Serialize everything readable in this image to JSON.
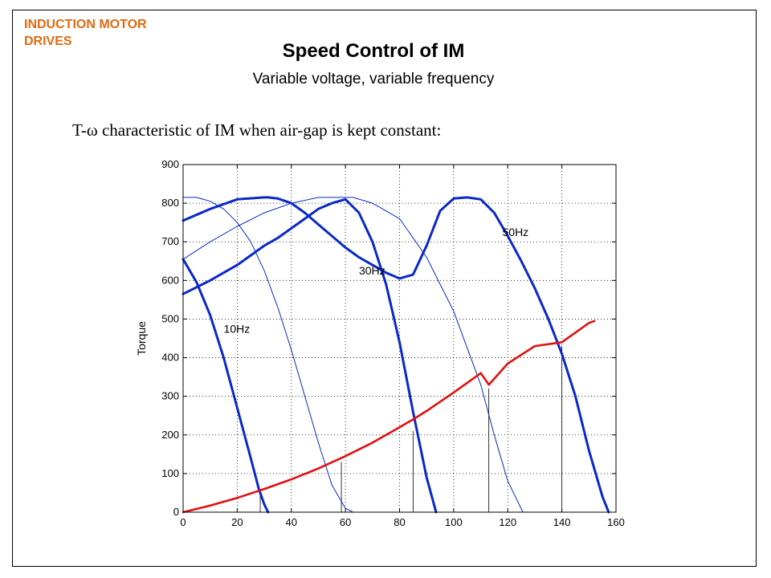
{
  "slide": {
    "section_label_line1": "INDUCTION MOTOR",
    "section_label_line2": "DRIVES",
    "title": "Speed Control of IM",
    "subtitle": "Variable voltage, variable frequency",
    "caption": "T-ω characteristic of IM when air-gap is kept constant:"
  },
  "chart_data": {
    "type": "line",
    "title": "",
    "xlabel": "",
    "ylabel": "Torque",
    "xlim": [
      0,
      160
    ],
    "ylim": [
      0,
      900
    ],
    "xticks": [
      0,
      20,
      40,
      60,
      80,
      100,
      120,
      140,
      160
    ],
    "yticks": [
      0,
      100,
      200,
      300,
      400,
      500,
      600,
      700,
      800,
      900
    ],
    "grid": "dotted",
    "curve_labels": [
      {
        "text": "10Hz",
        "x": 15,
        "y": 465
      },
      {
        "text": "30Hz",
        "x": 65,
        "y": 615
      },
      {
        "text": "50Hz",
        "x": 118,
        "y": 715
      }
    ],
    "series": [
      {
        "style": "thick-blue",
        "x": [
          0,
          5,
          10,
          15,
          20,
          25,
          28,
          30,
          31.4
        ],
        "y": [
          655,
          595,
          510,
          400,
          270,
          140,
          60,
          20,
          0
        ]
      },
      {
        "style": "thick-blue",
        "x": [
          0,
          10,
          20,
          25,
          30,
          35,
          40,
          45,
          50,
          55,
          60,
          65,
          70,
          75,
          80,
          85,
          90,
          93.5
        ],
        "y": [
          565,
          600,
          640,
          665,
          690,
          710,
          735,
          760,
          785,
          800,
          810,
          775,
          700,
          590,
          440,
          260,
          90,
          0
        ]
      },
      {
        "style": "thick-blue",
        "x": [
          0,
          10,
          20,
          30,
          31.4,
          35,
          40,
          45,
          50,
          55,
          60,
          65,
          70,
          75,
          80,
          85,
          90,
          95,
          100,
          105,
          110,
          115,
          120,
          125,
          130,
          135,
          140,
          145,
          150,
          155,
          157.3
        ],
        "y": [
          755,
          785,
          810,
          815,
          815,
          812,
          800,
          775,
          745,
          715,
          685,
          660,
          640,
          620,
          605,
          615,
          690,
          780,
          812,
          815,
          810,
          775,
          715,
          650,
          580,
          500,
          410,
          300,
          160,
          40,
          0
        ]
      },
      {
        "style": "thin-blue",
        "x": [
          0,
          5,
          10,
          15,
          20,
          25,
          30,
          35,
          40,
          45,
          50,
          55,
          60,
          62.8
        ],
        "y": [
          815,
          815,
          805,
          785,
          750,
          700,
          625,
          530,
          420,
          300,
          180,
          70,
          10,
          0
        ]
      },
      {
        "style": "thin-blue",
        "x": [
          0,
          10,
          20,
          30,
          40,
          50,
          60,
          62.8,
          70,
          80,
          90,
          100,
          110,
          115,
          120,
          125.6
        ],
        "y": [
          655,
          700,
          740,
          775,
          800,
          815,
          815,
          815,
          800,
          760,
          660,
          520,
          330,
          200,
          80,
          0
        ]
      },
      {
        "style": "red",
        "x": [
          0,
          10,
          20,
          30,
          40,
          50,
          60,
          70,
          80,
          85,
          90,
          100,
          110,
          113,
          120,
          130,
          140,
          150,
          152
        ],
        "y": [
          0,
          17,
          37,
          60,
          85,
          113,
          145,
          180,
          220,
          240,
          262,
          310,
          360,
          330,
          385,
          430,
          440,
          490,
          495
        ]
      }
    ],
    "operating_point_markers": [
      {
        "x": 28.5,
        "y": 57
      },
      {
        "x": 58.5,
        "y": 130
      },
      {
        "x": 85,
        "y": 210
      },
      {
        "x": 113,
        "y": 320
      },
      {
        "x": 140,
        "y": 430
      }
    ]
  }
}
